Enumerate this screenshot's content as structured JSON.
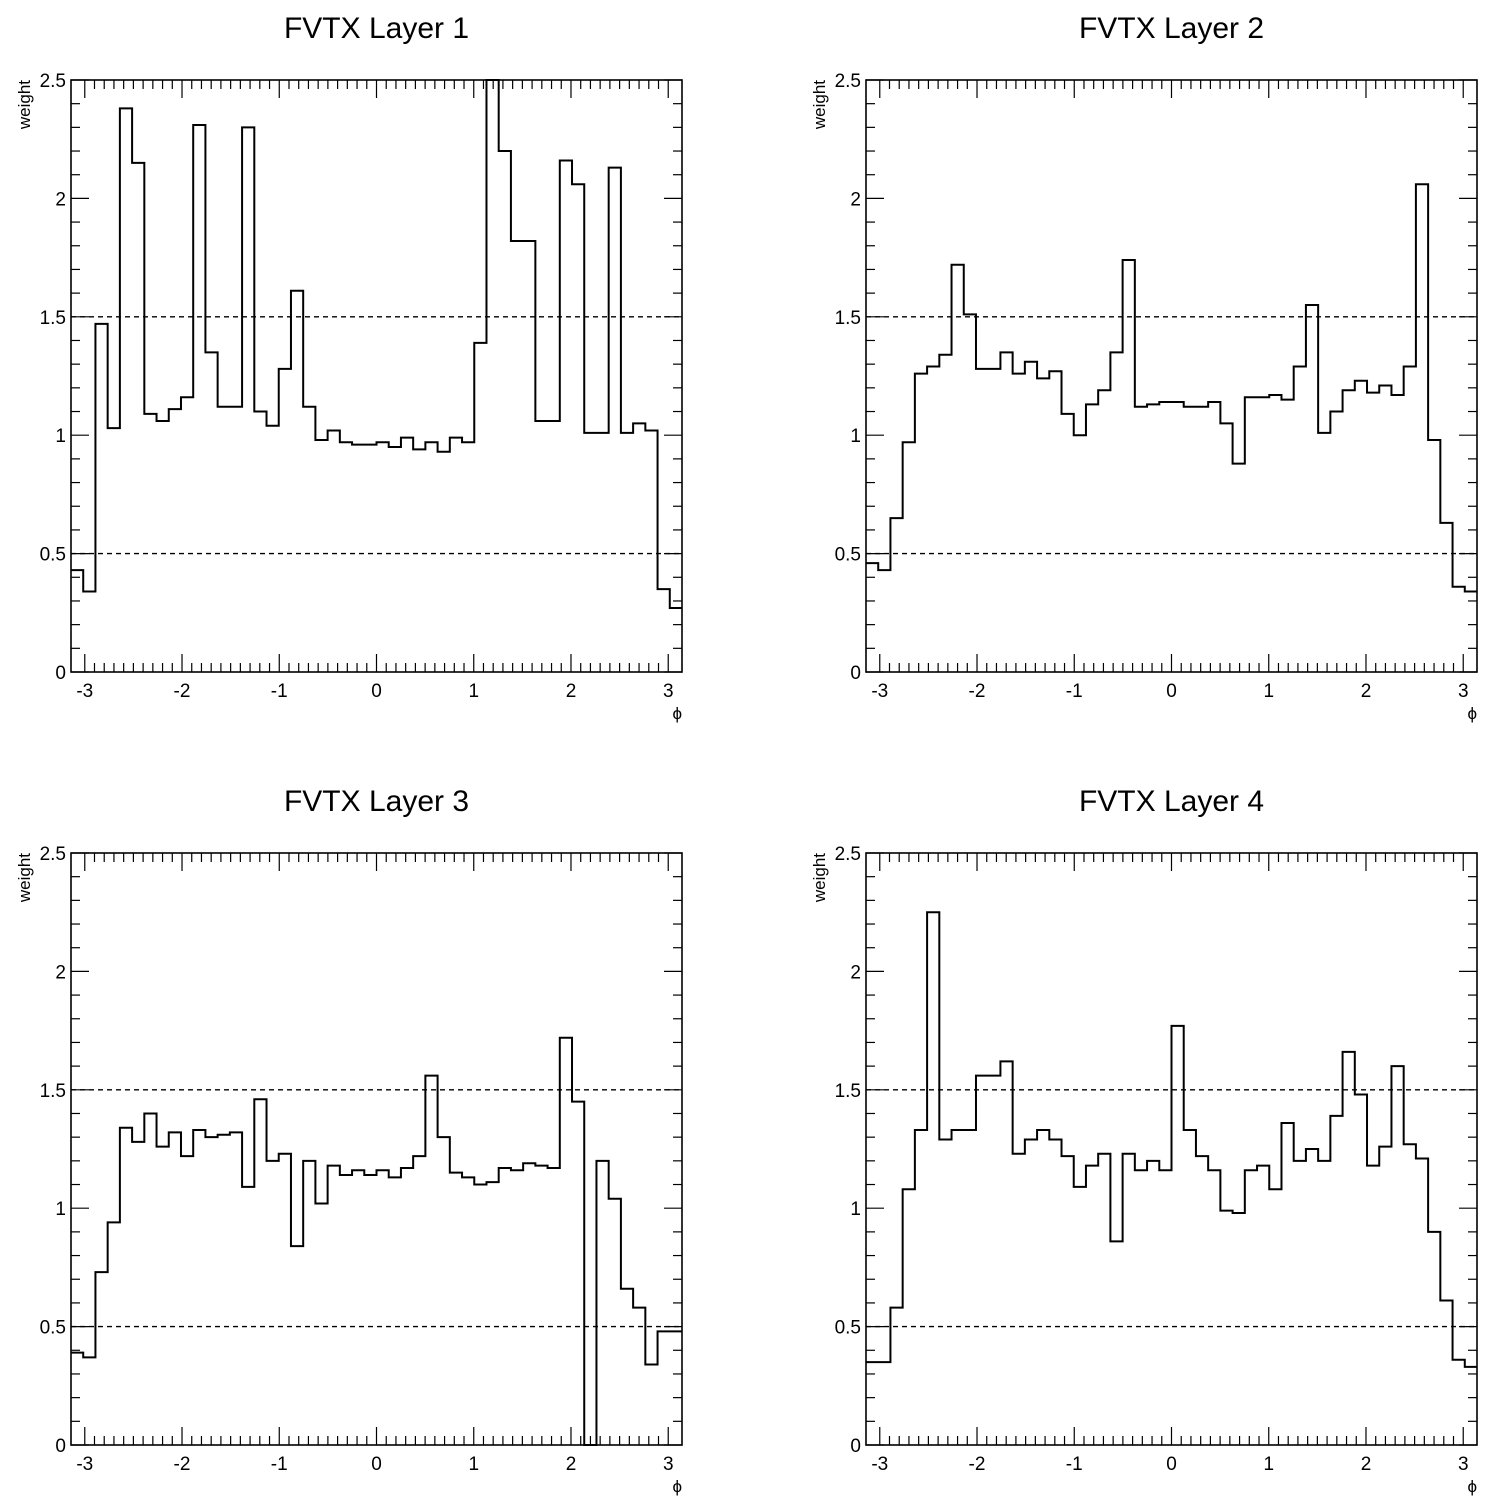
{
  "chart_data": [
    {
      "type": "histogram",
      "title": "FVTX Layer 1",
      "xlabel": "ϕ",
      "ylabel": "weight",
      "xlim": [
        -3.1416,
        3.1416
      ],
      "ylim": [
        0,
        2.5
      ],
      "xticks": [
        "-3",
        "-2",
        "-1",
        "0",
        "1",
        "2",
        "3"
      ],
      "yticks": [
        "0",
        "0.5",
        "1",
        "1.5",
        "2",
        "2.5"
      ],
      "reference_lines": [
        0.5,
        1.5
      ],
      "bins": 50,
      "values": [
        0.43,
        0.34,
        1.47,
        1.03,
        2.38,
        2.15,
        1.09,
        1.06,
        1.11,
        1.16,
        2.31,
        1.35,
        1.12,
        1.12,
        2.3,
        1.1,
        1.04,
        1.28,
        1.61,
        1.12,
        0.98,
        1.02,
        0.97,
        0.96,
        0.96,
        0.97,
        0.95,
        0.99,
        0.94,
        0.97,
        0.93,
        0.99,
        0.97,
        1.39,
        2.58,
        2.2,
        1.82,
        1.82,
        1.06,
        1.06,
        2.16,
        2.06,
        1.01,
        1.01,
        2.13,
        1.01,
        1.05,
        1.02,
        0.35,
        0.27
      ]
    },
    {
      "type": "histogram",
      "title": "FVTX Layer 2",
      "xlabel": "ϕ",
      "ylabel": "weight",
      "xlim": [
        -3.1416,
        3.1416
      ],
      "ylim": [
        0,
        2.5
      ],
      "xticks": [
        "-3",
        "-2",
        "-1",
        "0",
        "1",
        "2",
        "3"
      ],
      "yticks": [
        "0",
        "0.5",
        "1",
        "1.5",
        "2",
        "2.5"
      ],
      "reference_lines": [
        0.5,
        1.5
      ],
      "bins": 50,
      "values": [
        0.46,
        0.43,
        0.65,
        0.97,
        1.26,
        1.29,
        1.34,
        1.72,
        1.51,
        1.28,
        1.28,
        1.35,
        1.26,
        1.31,
        1.24,
        1.27,
        1.09,
        1.0,
        1.13,
        1.19,
        1.35,
        1.74,
        1.12,
        1.13,
        1.14,
        1.14,
        1.12,
        1.12,
        1.14,
        1.05,
        0.88,
        1.16,
        1.16,
        1.17,
        1.15,
        1.29,
        1.55,
        1.01,
        1.1,
        1.19,
        1.23,
        1.18,
        1.21,
        1.17,
        1.29,
        2.06,
        0.98,
        0.63,
        0.36,
        0.34
      ]
    },
    {
      "type": "histogram",
      "title": "FVTX Layer 3",
      "xlabel": "ϕ",
      "ylabel": "weight",
      "xlim": [
        -3.1416,
        3.1416
      ],
      "ylim": [
        0,
        2.5
      ],
      "xticks": [
        "-3",
        "-2",
        "-1",
        "0",
        "1",
        "2",
        "3"
      ],
      "yticks": [
        "0",
        "0.5",
        "1",
        "1.5",
        "2",
        "2.5"
      ],
      "reference_lines": [
        0.5,
        1.5
      ],
      "bins": 50,
      "values": [
        0.39,
        0.37,
        0.73,
        0.94,
        1.34,
        1.28,
        1.4,
        1.26,
        1.32,
        1.22,
        1.33,
        1.3,
        1.31,
        1.32,
        1.09,
        1.46,
        1.2,
        1.23,
        0.84,
        1.2,
        1.02,
        1.18,
        1.14,
        1.16,
        1.14,
        1.16,
        1.13,
        1.17,
        1.22,
        1.56,
        1.3,
        1.15,
        1.13,
        1.1,
        1.11,
        1.17,
        1.16,
        1.19,
        1.18,
        1.17,
        1.72,
        1.45,
        0.0,
        1.2,
        1.04,
        0.66,
        0.58,
        0.34,
        0.48,
        0.48
      ]
    },
    {
      "type": "histogram",
      "title": "FVTX Layer 4",
      "xlabel": "ϕ",
      "ylabel": "weight",
      "xlim": [
        -3.1416,
        3.1416
      ],
      "ylim": [
        0,
        2.5
      ],
      "xticks": [
        "-3",
        "-2",
        "-1",
        "0",
        "1",
        "2",
        "3"
      ],
      "yticks": [
        "0",
        "0.5",
        "1",
        "1.5",
        "2",
        "2.5"
      ],
      "reference_lines": [
        0.5,
        1.5
      ],
      "bins": 50,
      "values": [
        0.35,
        0.35,
        0.58,
        1.08,
        1.33,
        2.25,
        1.29,
        1.33,
        1.33,
        1.56,
        1.56,
        1.62,
        1.23,
        1.29,
        1.33,
        1.29,
        1.22,
        1.09,
        1.18,
        1.23,
        0.86,
        1.23,
        1.16,
        1.2,
        1.16,
        1.77,
        1.33,
        1.22,
        1.16,
        0.99,
        0.98,
        1.16,
        1.18,
        1.08,
        1.36,
        1.2,
        1.25,
        1.2,
        1.39,
        1.66,
        1.48,
        1.18,
        1.26,
        1.6,
        1.27,
        1.21,
        0.9,
        0.61,
        0.36,
        0.33
      ]
    }
  ]
}
